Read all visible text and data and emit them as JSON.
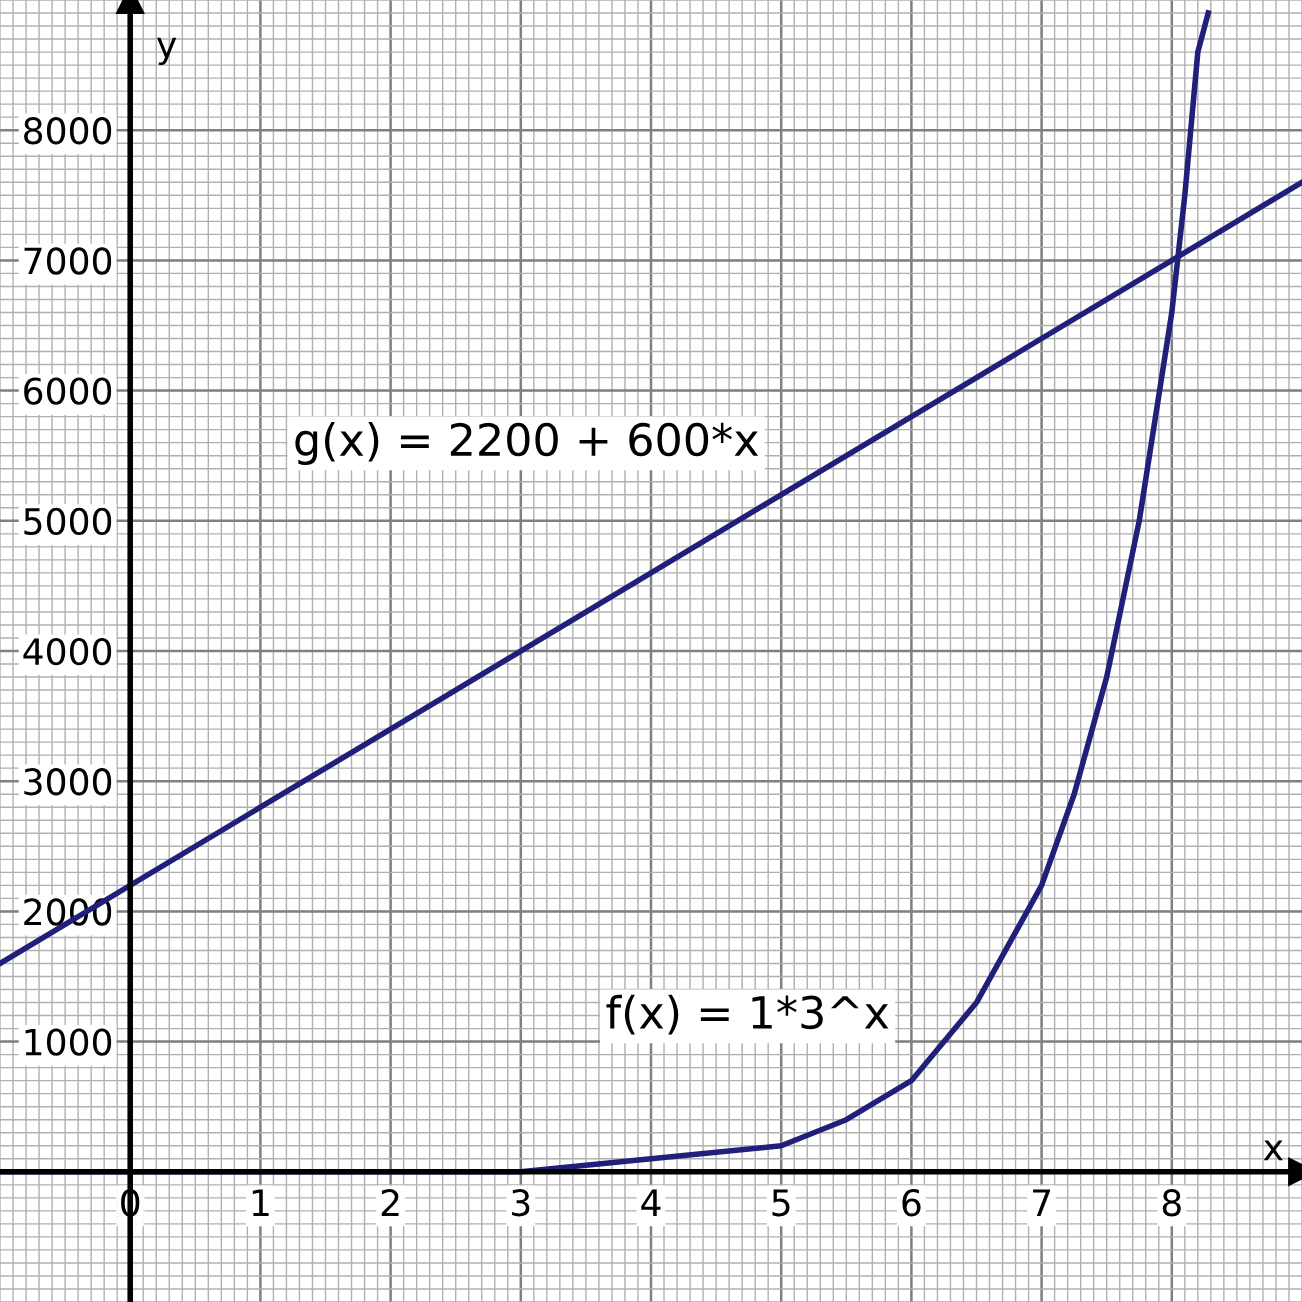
{
  "chart_data": {
    "type": "line",
    "xlabel": "x",
    "ylabel": "y",
    "xlim": [
      -1,
      9
    ],
    "ylim": [
      -1000,
      9000
    ],
    "xticks": [
      {
        "value": 0,
        "label": "0"
      },
      1,
      2,
      3,
      4,
      5,
      6,
      7,
      8
    ],
    "yticks": [
      1000,
      2000,
      3000,
      4000,
      5000,
      6000,
      7000,
      8000
    ],
    "grid": true,
    "marker": "none",
    "line_style": "solid",
    "series": [
      {
        "color": "#20207a",
        "x": [
          -1,
          0,
          1,
          2,
          3,
          4,
          5,
          5.5,
          6,
          6.5,
          7,
          7.25,
          7.5,
          7.75,
          8,
          8.1,
          8.2,
          8.28
        ],
        "values": [
          0,
          0,
          0,
          0,
          0,
          100,
          200,
          400,
          700,
          1300,
          2200,
          2900,
          3800,
          5000,
          6600,
          7500,
          8600,
          8900
        ]
      },
      {
        "color": "#20207a",
        "x": [
          -1,
          9
        ],
        "values": [
          1600,
          7600
        ]
      }
    ],
    "annotations": [
      "g(x) = 2200 + 600*x",
      "f(x) = 1*3^x"
    ]
  }
}
